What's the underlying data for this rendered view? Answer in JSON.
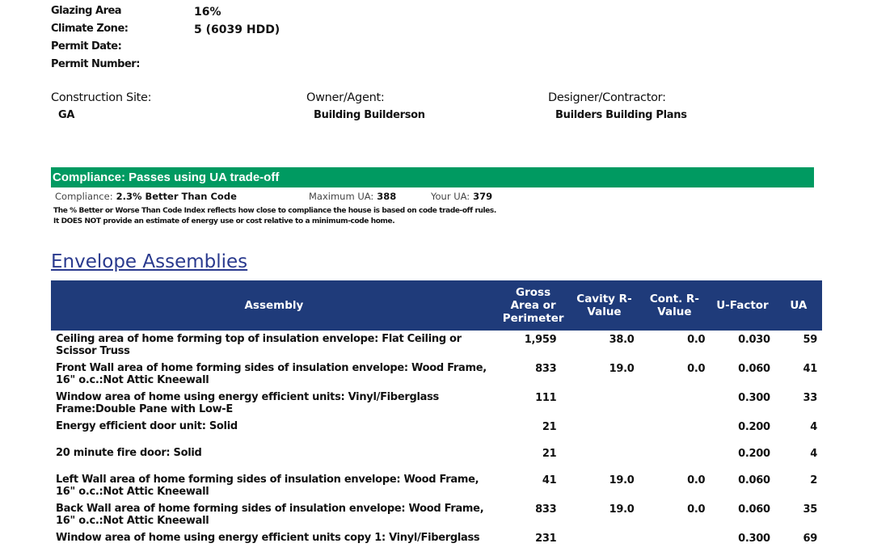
{
  "info": [
    {
      "label": "Glazing Area",
      "value": "16%"
    },
    {
      "label": "Climate Zone:",
      "value": "5  (6039 HDD)"
    },
    {
      "label": "Permit Date:",
      "value": ""
    },
    {
      "label": "Permit Number:",
      "value": ""
    }
  ],
  "parties": [
    {
      "label": "Construction Site:",
      "name": "GA"
    },
    {
      "label": "Owner/Agent:",
      "name": "Building Builderson"
    },
    {
      "label": "Designer/Contractor:",
      "name": "Builders Building Plans"
    }
  ],
  "compliance": {
    "banner": "Compliance: Passes using UA trade-off",
    "banner_color": "#009a61",
    "compliance_label": "Compliance:",
    "compliance_value": "2.3% Better Than Code",
    "max_ua_label": "Maximum UA:",
    "max_ua_value": "388",
    "your_ua_label": "Your UA:",
    "your_ua_value": "379",
    "note1": "The % Better or Worse Than Code Index reflects  how close to compliance the house is based on code trade-off rules.",
    "note2": "It DOES NOT provide an estimate of energy use or cost relative to a  minimum-code home."
  },
  "section_title": "Envelope Assemblies",
  "table": {
    "header_color": "#1f3b7a",
    "columns": [
      "Assembly",
      "Gross Area or Perimeter",
      "Cavity R-Value",
      "Cont. R-Value",
      "U-Factor",
      "UA"
    ],
    "rows": [
      [
        "Ceiling area of home forming top of insulation envelope: Flat Ceiling or Scissor Truss",
        "1,959",
        "38.0",
        "0.0",
        "0.030",
        "59"
      ],
      [
        "Front Wall area of home forming sides of insulation envelope: Wood Frame, 16\" o.c.:Not Attic Kneewall",
        "833",
        "19.0",
        "0.0",
        "0.060",
        "41"
      ],
      [
        "Window area of home using energy efficient units: Vinyl/Fiberglass Frame:Double Pane with Low-E",
        "111",
        "",
        "",
        "0.300",
        "33"
      ],
      [
        "Energy efficient door unit: Solid",
        "21",
        "",
        "",
        "0.200",
        "4"
      ],
      [
        "20 minute fire door: Solid",
        "21",
        "",
        "",
        "0.200",
        "4"
      ],
      [
        "Left Wall area of home forming sides of insulation envelope: Wood Frame, 16\" o.c.:Not Attic Kneewall",
        "41",
        "19.0",
        "0.0",
        "0.060",
        "2"
      ],
      [
        "Back Wall area of home forming sides of insulation envelope: Wood Frame, 16\" o.c.:Not Attic Kneewall",
        "833",
        "19.0",
        "0.0",
        "0.060",
        "35"
      ],
      [
        "Window area of home using energy efficient units copy 1: Vinyl/Fiberglass",
        "231",
        "",
        "",
        "0.300",
        "69"
      ]
    ]
  }
}
